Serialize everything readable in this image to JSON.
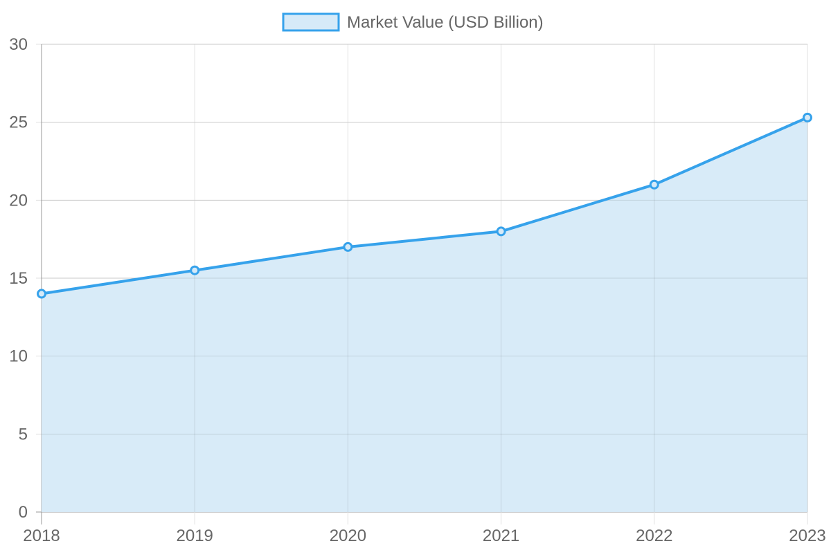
{
  "chart_data": {
    "type": "area",
    "title": "",
    "xlabel": "",
    "ylabel": "",
    "categories": [
      "2018",
      "2019",
      "2020",
      "2021",
      "2022",
      "2023"
    ],
    "series": [
      {
        "name": "Market Value (USD Billion)",
        "values": [
          14,
          15.5,
          17,
          18,
          21,
          25.3
        ]
      }
    ],
    "ylim": [
      0,
      30
    ],
    "yticks": [
      0,
      5,
      10,
      15,
      20,
      25,
      30
    ],
    "grid": true,
    "legend": "top-center",
    "colors": {
      "line": "#36a2eb",
      "fill": "#d6eaf8",
      "grid": "#e0e0e0",
      "axis": "#999999",
      "text": "#666666"
    }
  }
}
